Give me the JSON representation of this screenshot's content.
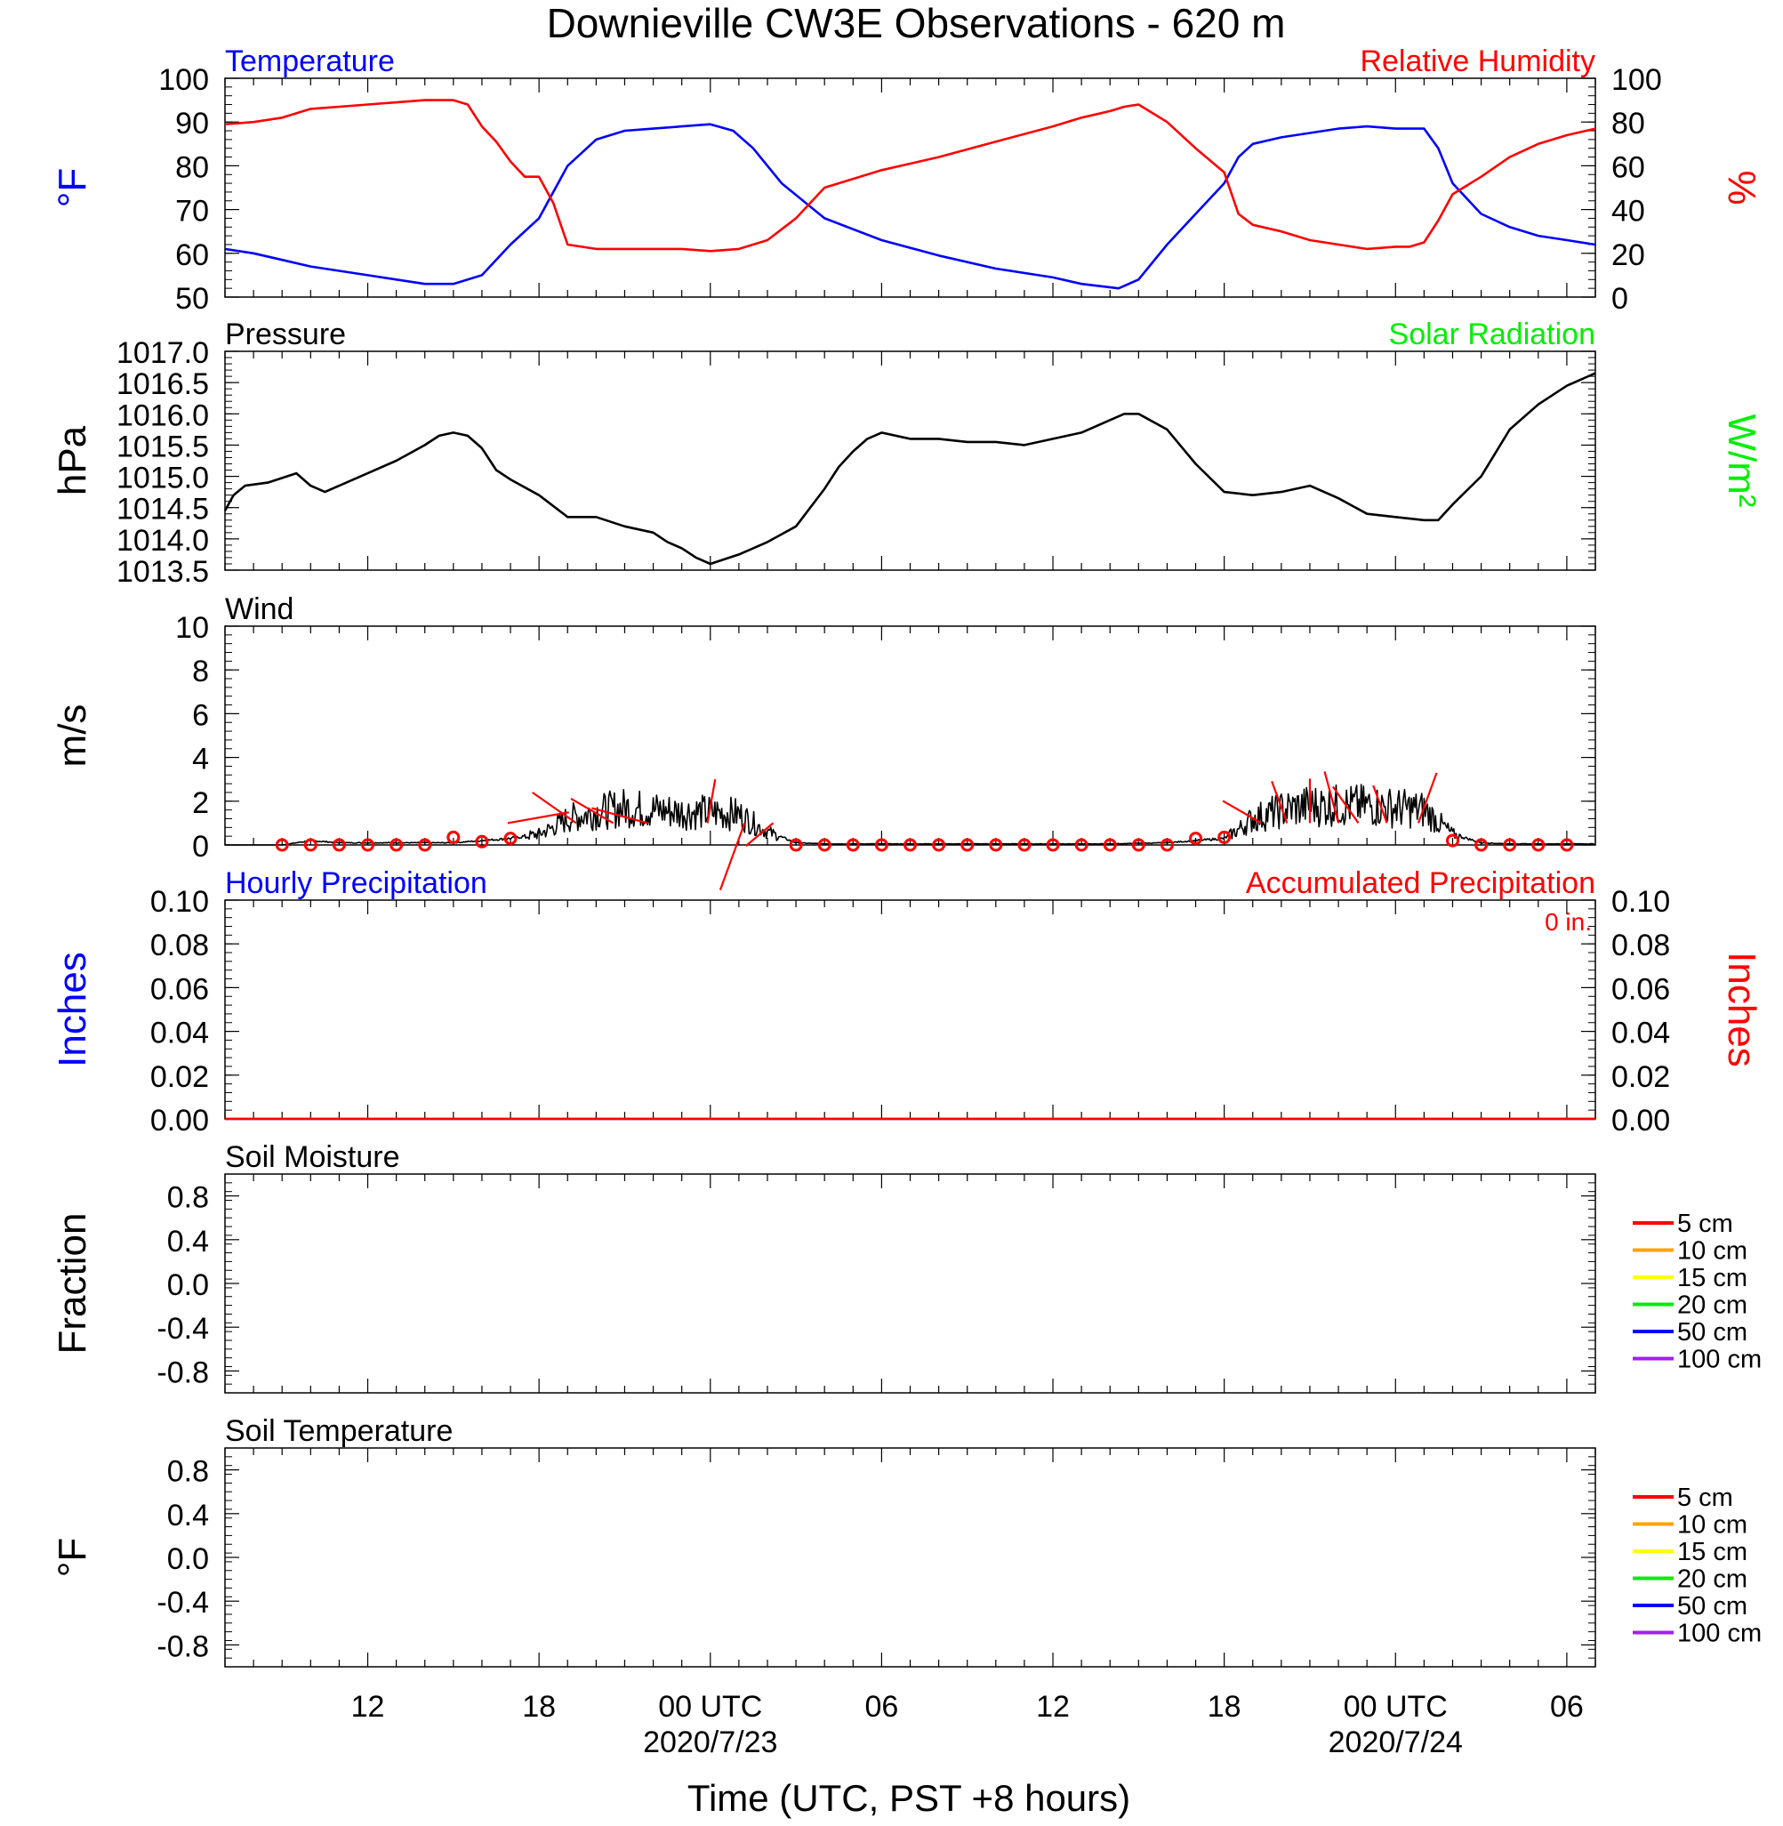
{
  "title": "Downieville CW3E Observations - 620 m",
  "x_axis": {
    "label": "Time (UTC, PST +8 hours)",
    "ticks": [
      {
        "x": 12,
        "label": "12"
      },
      {
        "x": 18,
        "label": "18"
      },
      {
        "x": 24,
        "label": "00 UTC",
        "sublabel": "2020/7/23"
      },
      {
        "x": 30,
        "label": "06"
      },
      {
        "x": 36,
        "label": "12"
      },
      {
        "x": 42,
        "label": "18"
      },
      {
        "x": 48,
        "label": "00 UTC",
        "sublabel": "2020/7/24"
      },
      {
        "x": 54,
        "label": "06"
      }
    ]
  },
  "colors": {
    "temperature": "#0000ff",
    "humidity": "#ff0000",
    "pressure": "#000000",
    "solar": "#00ee00",
    "wind": "#000000",
    "barb": "#ff0000",
    "precip_hourly": "#0000ff",
    "precip_accum": "#ff0000"
  },
  "soil_legend": [
    {
      "label": "5 cm",
      "color": "#ff0000"
    },
    {
      "label": "10 cm",
      "color": "#ffa500"
    },
    {
      "label": "15 cm",
      "color": "#ffff00"
    },
    {
      "label": "20 cm",
      "color": "#00ee00"
    },
    {
      "label": "50 cm",
      "color": "#0000ff"
    },
    {
      "label": "100 cm",
      "color": "#a020f0"
    }
  ],
  "chart_data": [
    {
      "type": "line",
      "panel": "temperature_humidity",
      "left_title": "Temperature",
      "right_title": "Relative Humidity",
      "ylabel_left": "°F",
      "ylabel_right": "%",
      "ylim_left": [
        50,
        100
      ],
      "ylim_right": [
        0,
        100
      ],
      "yticks_left": [
        "50",
        "60",
        "70",
        "80",
        "90",
        "100"
      ],
      "yticks_right": [
        "0",
        "20",
        "40",
        "60",
        "80",
        "100"
      ],
      "xlim": [
        7,
        55
      ],
      "series": [
        {
          "key": "temperature",
          "axis": "left",
          "unit": "°F",
          "x": [
            7,
            8,
            9,
            10,
            11,
            12,
            13,
            14,
            15,
            16,
            17,
            18,
            19,
            20,
            21,
            22,
            23,
            24,
            24.8,
            25.5,
            26.5,
            28,
            30,
            32,
            34,
            36,
            37,
            38.3,
            39,
            40,
            41,
            42,
            42.5,
            43,
            44,
            45,
            46,
            47,
            48,
            48.3,
            49,
            49.5,
            50,
            51,
            52,
            53,
            54,
            55
          ],
          "y": [
            61,
            60,
            58.5,
            57,
            56,
            55,
            54,
            53,
            53,
            55,
            62,
            68,
            80,
            86,
            88,
            88.5,
            89,
            89.5,
            88,
            84,
            76,
            68,
            63,
            59.5,
            56.5,
            54.5,
            53,
            52,
            54,
            62,
            69,
            76,
            82,
            85,
            86.5,
            87.5,
            88.5,
            89,
            88.5,
            88.5,
            88.5,
            84,
            76,
            69,
            66,
            64,
            63,
            62
          ]
        },
        {
          "key": "humidity",
          "axis": "right",
          "unit": "%",
          "x": [
            7,
            8,
            9,
            10,
            11,
            12,
            13,
            14,
            15,
            15.5,
            16,
            16.5,
            17,
            17.5,
            18,
            18.5,
            19,
            20,
            21,
            22,
            23,
            24,
            25,
            26,
            27,
            28,
            30,
            32,
            34,
            36,
            37,
            38,
            38.5,
            39,
            40,
            41,
            42,
            42.5,
            43,
            44,
            45,
            46,
            47,
            48,
            48.5,
            49,
            49.5,
            50,
            51,
            52,
            53,
            54,
            55
          ],
          "y": [
            79,
            80,
            82,
            86,
            87,
            88,
            89,
            90,
            90,
            88,
            78,
            71,
            62,
            55,
            55,
            43,
            24,
            22,
            22,
            22,
            22,
            21,
            22,
            26,
            36,
            50,
            58,
            64,
            71,
            78,
            82,
            85,
            87,
            88,
            80,
            68,
            57,
            38,
            33,
            30,
            26,
            24,
            22,
            23,
            23,
            25,
            35,
            47,
            55,
            64,
            70,
            74,
            77
          ]
        }
      ]
    },
    {
      "type": "line",
      "panel": "pressure",
      "left_title": "Pressure",
      "right_title": "Solar Radiation",
      "ylabel_left": "hPa",
      "ylabel_right": "W/m²",
      "ylim_left": [
        1013.5,
        1017.0
      ],
      "yticks_left": [
        "1013.5",
        "1014.0",
        "1014.5",
        "1015.0",
        "1015.5",
        "1016.0",
        "1016.5",
        "1017.0"
      ],
      "xlim": [
        7,
        55
      ],
      "series": [
        {
          "key": "pressure",
          "axis": "left",
          "unit": "hPa",
          "x": [
            7,
            7.3,
            7.7,
            8.5,
            9.5,
            10,
            10.5,
            11,
            11.5,
            12,
            13,
            14,
            14.5,
            15,
            15.5,
            16,
            16.5,
            17,
            18,
            19,
            20,
            21,
            22,
            22.5,
            23,
            23.5,
            24,
            25,
            26,
            27,
            28,
            28.5,
            29,
            29.5,
            30,
            31,
            32,
            33,
            34,
            35,
            36,
            37,
            38,
            38.5,
            39,
            40,
            41,
            42,
            43,
            44,
            45,
            46,
            47,
            48,
            49,
            49.5,
            50,
            51,
            52,
            53,
            54,
            55
          ],
          "y": [
            1014.45,
            1014.7,
            1014.85,
            1014.9,
            1015.05,
            1014.85,
            1014.75,
            1014.85,
            1014.95,
            1015.05,
            1015.25,
            1015.5,
            1015.65,
            1015.7,
            1015.65,
            1015.45,
            1015.1,
            1014.95,
            1014.7,
            1014.35,
            1014.35,
            1014.2,
            1014.1,
            1013.95,
            1013.85,
            1013.7,
            1013.6,
            1013.75,
            1013.95,
            1014.2,
            1014.8,
            1015.15,
            1015.4,
            1015.6,
            1015.7,
            1015.6,
            1015.6,
            1015.55,
            1015.55,
            1015.5,
            1015.6,
            1015.7,
            1015.9,
            1016.0,
            1016.0,
            1015.75,
            1015.2,
            1014.75,
            1014.7,
            1014.75,
            1014.85,
            1014.65,
            1014.4,
            1014.35,
            1014.3,
            1014.3,
            1014.55,
            1015.0,
            1015.75,
            1016.15,
            1016.45,
            1016.65
          ]
        }
      ]
    },
    {
      "type": "line",
      "panel": "wind",
      "left_title": "Wind",
      "ylabel_left": "m/s",
      "ylim_left": [
        0,
        10
      ],
      "yticks_left": [
        "0",
        "2",
        "4",
        "6",
        "8",
        "10"
      ],
      "xlim": [
        7,
        55
      ],
      "series": [
        {
          "key": "wind_speed",
          "axis": "left",
          "unit": "m/s",
          "x": [
            7,
            9,
            10,
            11,
            12,
            13,
            14,
            15,
            16,
            17,
            17.5,
            18,
            18.5,
            19,
            20,
            21,
            22,
            23,
            24,
            25,
            26,
            27,
            28,
            30,
            32,
            34,
            36,
            38,
            40,
            41,
            42,
            42.5,
            43,
            44,
            45,
            46,
            47,
            48,
            49,
            50,
            51,
            52,
            53,
            54,
            55
          ],
          "y": [
            0,
            0,
            0.2,
            0.1,
            0.1,
            0.1,
            0.1,
            0.1,
            0.2,
            0.3,
            0.4,
            0.5,
            0.8,
            1.2,
            1.5,
            1.7,
            1.6,
            1.5,
            1.5,
            1.4,
            0.6,
            0.1,
            0.05,
            0.05,
            0.05,
            0.05,
            0.05,
            0.05,
            0.1,
            0.2,
            0.3,
            0.7,
            1.2,
            1.6,
            1.8,
            1.8,
            1.8,
            1.7,
            1.6,
            0.5,
            0.1,
            0.05,
            0.05,
            0.05,
            0.05
          ]
        }
      ],
      "barbs": [
        {
          "x": 19.3,
          "len": 1.2,
          "dir": -55
        },
        {
          "x": 20.6,
          "len": 1.1,
          "dir": -60
        },
        {
          "x": 21.8,
          "len": 1.3,
          "dir": -75
        },
        {
          "x": 23.9,
          "len": 1.0,
          "dir": 10
        },
        {
          "x": 25.2,
          "len": 1.6,
          "dir": 200
        },
        {
          "x": 26.2,
          "len": 0.8,
          "dir": 230
        },
        {
          "x": 16.9,
          "len": 1.4,
          "dir": 80
        },
        {
          "x": 43.3,
          "len": 1.0,
          "dir": -60
        },
        {
          "x": 44.2,
          "len": 1.0,
          "dir": -20
        },
        {
          "x": 45.0,
          "len": 1.0,
          "dir": 0
        },
        {
          "x": 46.0,
          "len": 1.2,
          "dir": -15
        },
        {
          "x": 46.7,
          "len": 1.0,
          "dir": -35
        },
        {
          "x": 47.7,
          "len": 0.9,
          "dir": -20
        },
        {
          "x": 48.8,
          "len": 1.2,
          "dir": 20
        }
      ],
      "calm_markers": {
        "x": [
          9,
          10,
          11,
          12,
          13,
          14,
          15,
          16,
          17,
          27,
          28,
          29,
          30,
          31,
          32,
          33,
          34,
          35,
          36,
          37,
          38,
          39,
          40,
          41,
          42,
          50,
          51,
          52,
          53,
          54
        ],
        "y": [
          0,
          0,
          0,
          0,
          0,
          0,
          0.35,
          0.15,
          0.3,
          0,
          0,
          0,
          0,
          0,
          0,
          0,
          0,
          0,
          0,
          0,
          0,
          0,
          0,
          0.3,
          0.35,
          0.2,
          0,
          0,
          0,
          0
        ]
      }
    },
    {
      "type": "line",
      "panel": "precipitation",
      "left_title": "Hourly Precipitation",
      "right_title": "Accumulated Precipitation",
      "annotation": "0 in.",
      "ylabel_left": "Inches",
      "ylabel_right": "Inches",
      "ylim_left": [
        0,
        0.1
      ],
      "yticks_left": [
        "0.00",
        "0.02",
        "0.04",
        "0.06",
        "0.08",
        "0.10"
      ],
      "yticks_right": [
        "0.00",
        "0.02",
        "0.04",
        "0.06",
        "0.08",
        "0.10"
      ],
      "xlim": [
        7,
        55
      ],
      "series": [
        {
          "key": "precip_hourly",
          "axis": "left",
          "unit": "in",
          "x": [
            7,
            55
          ],
          "y": [
            0,
            0
          ]
        },
        {
          "key": "precip_accum",
          "axis": "left",
          "unit": "in",
          "x": [
            7,
            55
          ],
          "y": [
            0,
            0
          ]
        }
      ]
    },
    {
      "type": "line",
      "panel": "soil_moisture",
      "left_title": "Soil Moisture",
      "ylabel_left": "Fraction",
      "ylim_left": [
        -1,
        1
      ],
      "yticks_left": [
        "-0.8",
        "-0.4",
        "0.0",
        "0.4",
        "0.8"
      ],
      "xlim": [
        7,
        55
      ],
      "series": []
    },
    {
      "type": "line",
      "panel": "soil_temperature",
      "left_title": "Soil Temperature",
      "ylabel_left": "°F",
      "ylim_left": [
        -1,
        1
      ],
      "yticks_left": [
        "-0.8",
        "-0.4",
        "0.0",
        "0.4",
        "0.8"
      ],
      "xlim": [
        7,
        55
      ],
      "series": []
    }
  ]
}
